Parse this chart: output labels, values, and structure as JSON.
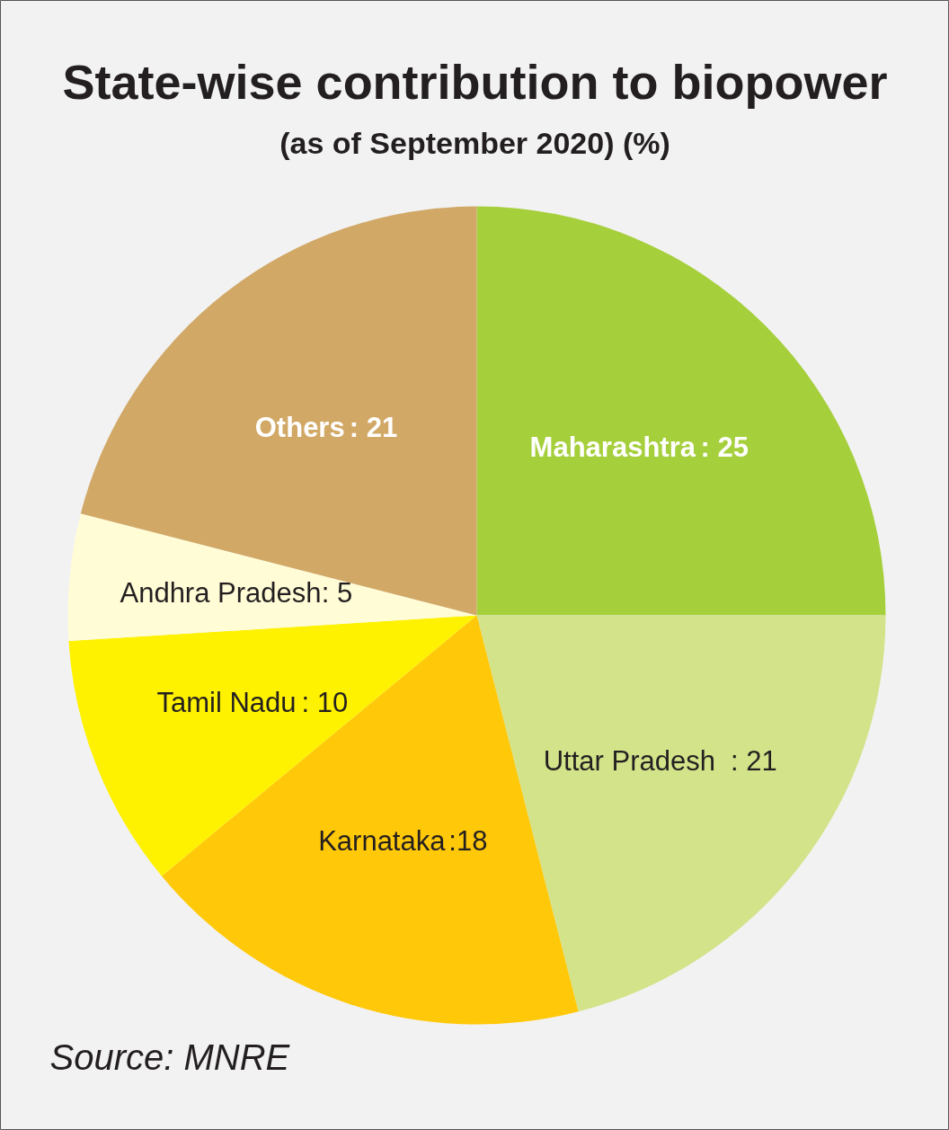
{
  "chart_data": {
    "type": "pie",
    "title": "State-wise contribution to biopower",
    "subtitle": "(as of September 2020) (%)",
    "categories": [
      "Maharashtra",
      "Uttar Pradesh",
      "Karnataka",
      "Tamil Nadu",
      "Andhra Pradesh",
      "Others"
    ],
    "values": [
      25,
      21,
      18,
      10,
      5,
      21
    ],
    "colors": [
      "#a6cf3c",
      "#d2e38a",
      "#ffc808",
      "#fff200",
      "#fffcd6",
      "#d1a866"
    ],
    "value_labels": [
      ": 25",
      ": 21",
      ":18",
      ": 10",
      ": 5",
      ": 21"
    ],
    "annotations": [
      "Source: MNRE"
    ]
  }
}
